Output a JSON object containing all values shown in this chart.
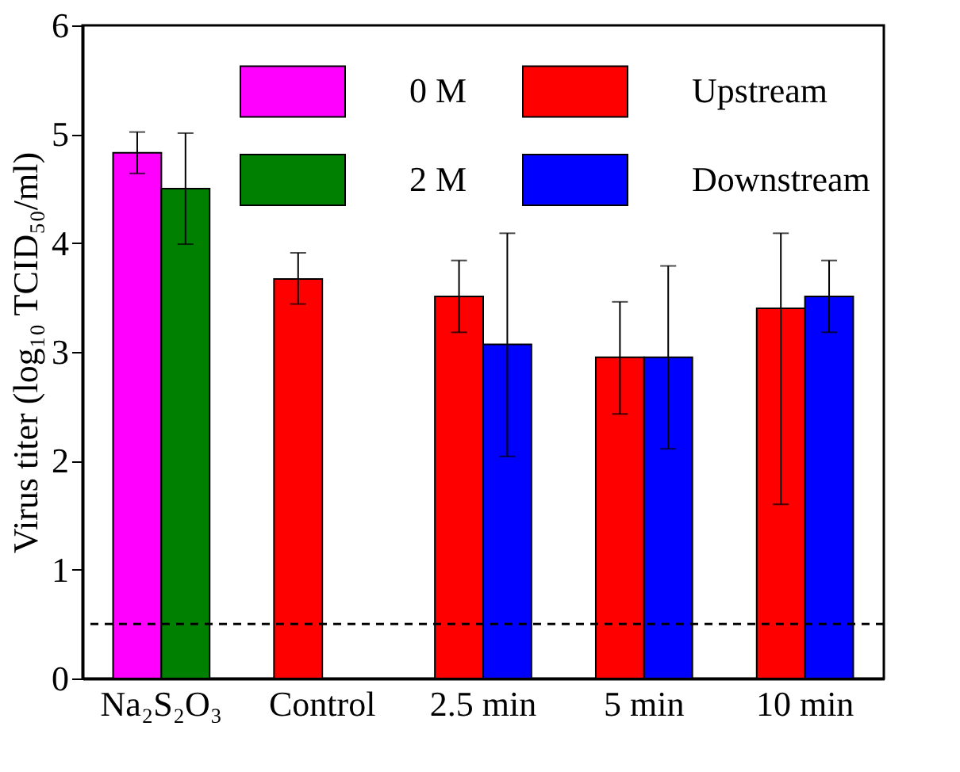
{
  "chart_data": {
    "type": "bar",
    "ylabel": "Virus titer (log₁₀ TCID₅₀/ml)",
    "categories": [
      "Na₂S₂O₃",
      "Control",
      "2.5 min",
      "5 min",
      "10 min"
    ],
    "series": [
      {
        "name": "0 M",
        "color": "#ff00ff",
        "values": [
          4.83,
          null,
          null,
          null,
          null
        ],
        "errors": [
          [
            4.64,
            5.02
          ],
          null,
          null,
          null,
          null
        ]
      },
      {
        "name": "2 M",
        "color": "#008000",
        "values": [
          4.5,
          null,
          null,
          null,
          null
        ],
        "errors": [
          [
            3.99,
            5.01
          ],
          null,
          null,
          null,
          null
        ]
      },
      {
        "name": "Upstream",
        "color": "#ff0000",
        "values": [
          null,
          3.67,
          3.51,
          2.95,
          3.4
        ],
        "errors": [
          null,
          [
            3.44,
            3.91
          ],
          [
            3.18,
            3.84
          ],
          [
            2.43,
            3.46
          ],
          [
            1.6,
            4.09
          ]
        ]
      },
      {
        "name": "Downstream",
        "color": "#0000ff",
        "values": [
          null,
          null,
          3.07,
          2.95,
          3.51
        ],
        "errors": [
          null,
          null,
          [
            2.04,
            4.09
          ],
          [
            2.11,
            3.79
          ],
          [
            3.18,
            3.84
          ]
        ]
      }
    ],
    "ylim": [
      0,
      6
    ],
    "yticks": [
      0,
      1,
      2,
      3,
      4,
      5,
      6
    ],
    "ref_lines": [
      {
        "axis": "y",
        "value": 0.5,
        "color": "#000000",
        "line_style": "dashed"
      }
    ],
    "legend": "top right",
    "grid": false
  }
}
